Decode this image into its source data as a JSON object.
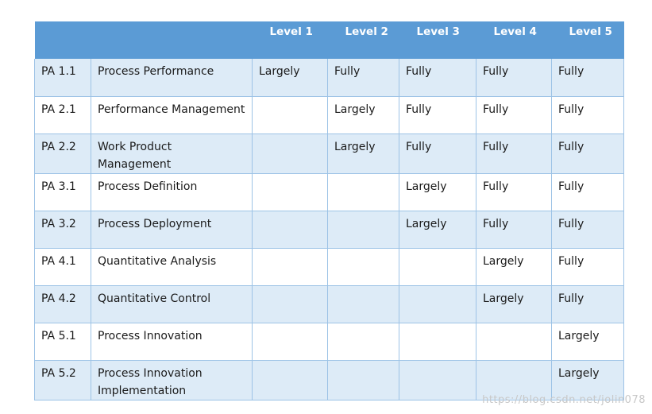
{
  "table": {
    "headers": [
      "",
      "",
      "Level 1",
      "Level 2",
      "Level 3",
      "Level 4",
      "Level 5"
    ],
    "rows": [
      {
        "id": "PA 1.1",
        "name": "Process Performance",
        "l1": "Largely",
        "l2": "Fully",
        "l3": "Fully",
        "l4": "Fully",
        "l5": "Fully"
      },
      {
        "id": "PA 2.1",
        "name": "Performance Management",
        "l1": "",
        "l2": "Largely",
        "l3": "Fully",
        "l4": "Fully",
        "l5": "Fully"
      },
      {
        "id": "PA 2.2",
        "name": "Work Product Management",
        "l1": "",
        "l2": "Largely",
        "l3": "Fully",
        "l4": "Fully",
        "l5": "Fully"
      },
      {
        "id": "PA 3.1",
        "name": "Process Definition",
        "l1": "",
        "l2": "",
        "l3": "Largely",
        "l4": "Fully",
        "l5": "Fully"
      },
      {
        "id": "PA 3.2",
        "name": "Process Deployment",
        "l1": "",
        "l2": "",
        "l3": "Largely",
        "l4": "Fully",
        "l5": "Fully"
      },
      {
        "id": "PA 4.1",
        "name": "Quantitative Analysis",
        "l1": "",
        "l2": "",
        "l3": "",
        "l4": "Largely",
        "l5": "Fully"
      },
      {
        "id": "PA 4.2",
        "name": "Quantitative Control",
        "l1": "",
        "l2": "",
        "l3": "",
        "l4": "Largely",
        "l5": "Fully"
      },
      {
        "id": "PA 5.1",
        "name": "Process Innovation",
        "l1": "",
        "l2": "",
        "l3": "",
        "l4": "",
        "l5": "Largely"
      },
      {
        "id": "PA 5.2",
        "name": "Process Innovation Implementation",
        "l1": "",
        "l2": "",
        "l3": "",
        "l4": "",
        "l5": "Largely"
      }
    ]
  },
  "colors": {
    "header_bg": "#5b9bd5",
    "band_bg": "#ddebf7",
    "border": "#9dc3e6"
  },
  "watermark": "https://blog.csdn.net/jolin078"
}
